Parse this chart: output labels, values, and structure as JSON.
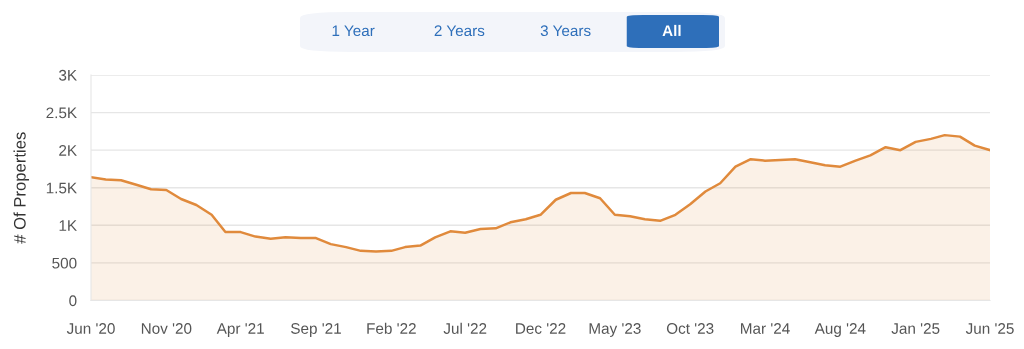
{
  "chart_data": {
    "type": "area",
    "ylabel": "# Of Properties",
    "annotations": [
      "1 Year",
      "2 Years",
      "3 Years",
      "All"
    ],
    "x": [
      "2020-06",
      "2020-07",
      "2020-08",
      "2020-09",
      "2020-10",
      "2020-11",
      "2020-12",
      "2021-01",
      "2021-02",
      "2021-03",
      "2021-04",
      "2021-05",
      "2021-06",
      "2021-07",
      "2021-08",
      "2021-09",
      "2021-10",
      "2021-11",
      "2021-12",
      "2022-01",
      "2022-02",
      "2022-03",
      "2022-04",
      "2022-05",
      "2022-06",
      "2022-07",
      "2022-08",
      "2022-09",
      "2022-10",
      "2022-11",
      "2022-12",
      "2023-01",
      "2023-02",
      "2023-03",
      "2023-04",
      "2023-05",
      "2023-06",
      "2023-07",
      "2023-08",
      "2023-09",
      "2023-10",
      "2023-11",
      "2023-12",
      "2024-01",
      "2024-02",
      "2024-03",
      "2024-04",
      "2024-05",
      "2024-06",
      "2024-07",
      "2024-08",
      "2024-09",
      "2024-10",
      "2024-11",
      "2024-12",
      "2025-01",
      "2025-02",
      "2025-03",
      "2025-04",
      "2025-05",
      "2025-06"
    ],
    "series": [
      {
        "color": "#e08a3c",
        "values": [
          1640,
          1610,
          1600,
          1540,
          1480,
          1470,
          1350,
          1270,
          1140,
          910,
          910,
          850,
          820,
          840,
          830,
          830,
          750,
          710,
          660,
          650,
          660,
          710,
          730,
          840,
          920,
          900,
          950,
          960,
          1040,
          1080,
          1140,
          1340,
          1430,
          1430,
          1360,
          1140,
          1120,
          1080,
          1060,
          1140,
          1280,
          1450,
          1560,
          1780,
          1880,
          1860,
          1870,
          1880,
          1840,
          1800,
          1780,
          1860,
          1930,
          2040,
          2000,
          2110,
          2150,
          2200,
          2180,
          2060,
          2000
        ]
      }
    ],
    "xlim": [
      "2020-06",
      "2025-06"
    ],
    "xticks": [
      {
        "value": "2020-06",
        "label": "Jun '20"
      },
      {
        "value": "2020-11",
        "label": "Nov '20"
      },
      {
        "value": "2021-04",
        "label": "Apr '21"
      },
      {
        "value": "2021-09",
        "label": "Sep '21"
      },
      {
        "value": "2022-02",
        "label": "Feb '22"
      },
      {
        "value": "2022-07",
        "label": "Jul '22"
      },
      {
        "value": "2022-12",
        "label": "Dec '22"
      },
      {
        "value": "2023-05",
        "label": "May '23"
      },
      {
        "value": "2023-10",
        "label": "Oct '23"
      },
      {
        "value": "2024-03",
        "label": "Mar '24"
      },
      {
        "value": "2024-08",
        "label": "Aug '24"
      },
      {
        "value": "2025-01",
        "label": "Jan '25"
      },
      {
        "value": "2025-06",
        "label": "Jun '25"
      }
    ],
    "ylim": [
      0,
      3000
    ],
    "yticks": [
      0,
      {
        "value": 500,
        "label": "500"
      },
      {
        "value": 1000,
        "label": "1K"
      },
      {
        "value": 1500,
        "label": "1.5K"
      },
      {
        "value": 2000,
        "label": "2K"
      },
      {
        "value": 2500,
        "label": "2.5K"
      },
      {
        "value": 3000,
        "label": "3K"
      }
    ],
    "grid": "y",
    "legend": false
  }
}
